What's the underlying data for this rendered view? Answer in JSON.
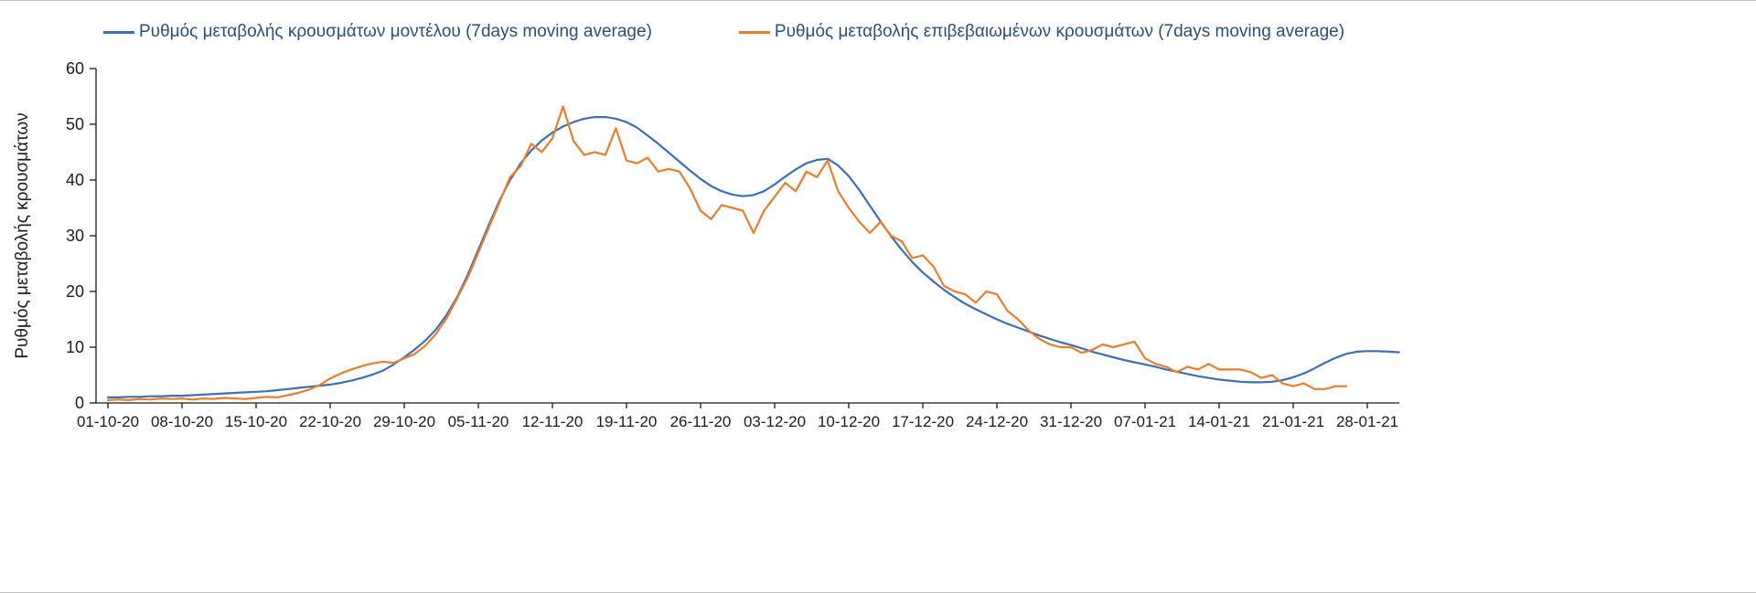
{
  "colors": {
    "legend_text": "#2d4f78",
    "axis": "#1a1a1a",
    "series_model": "#3e6fb4",
    "series_confirmed": "#ea7e2f"
  },
  "chart_data": {
    "type": "line",
    "title": "",
    "xlabel": "",
    "ylabel": "Ρυθμός μεταβολής κρουσμάτων",
    "ylim": [
      0,
      60
    ],
    "y_ticks": [
      0,
      10,
      20,
      30,
      40,
      50,
      60
    ],
    "grid": false,
    "legend_position": "top",
    "x_start": "01-10-20",
    "x_step_days": 1,
    "x_tick_positions": [
      0,
      7,
      14,
      21,
      28,
      35,
      42,
      49,
      56,
      63,
      70,
      77,
      84,
      91,
      98,
      105,
      112,
      119
    ],
    "x_tick_labels": [
      "01-10-20",
      "08-10-20",
      "15-10-20",
      "22-10-20",
      "29-10-20",
      "05-11-20",
      "12-11-20",
      "19-11-20",
      "26-11-20",
      "03-12-20",
      "10-12-20",
      "17-12-20",
      "24-12-20",
      "31-12-20",
      "07-01-21",
      "14-01-21",
      "21-01-21",
      "28-01-21"
    ],
    "series": [
      {
        "name": "Ρυθμός μεταβολής κρουσμάτων μοντέλου (7days moving average)",
        "color": "#3e6fb4",
        "values": [
          1.0,
          1.0,
          1.1,
          1.1,
          1.2,
          1.2,
          1.3,
          1.3,
          1.4,
          1.5,
          1.6,
          1.7,
          1.8,
          1.9,
          2.0,
          2.1,
          2.3,
          2.5,
          2.7,
          2.9,
          3.1,
          3.3,
          3.6,
          4.0,
          4.5,
          5.1,
          5.8,
          6.9,
          8.2,
          9.6,
          11.2,
          13.2,
          15.8,
          19.0,
          23.0,
          27.5,
          32.0,
          36.3,
          40.0,
          43.0,
          45.3,
          47.1,
          48.5,
          49.6,
          50.4,
          51.0,
          51.3,
          51.3,
          51.0,
          50.4,
          49.4,
          48.0,
          46.5,
          44.9,
          43.3,
          41.7,
          40.2,
          38.9,
          38.0,
          37.4,
          37.1,
          37.3,
          38.0,
          39.2,
          40.6,
          41.9,
          43.0,
          43.6,
          43.8,
          42.6,
          40.7,
          38.2,
          35.4,
          32.6,
          29.9,
          27.5,
          25.3,
          23.4,
          21.8,
          20.3,
          19.0,
          17.8,
          16.8,
          15.9,
          15.0,
          14.2,
          13.5,
          12.8,
          12.1,
          11.5,
          10.9,
          10.4,
          9.8,
          9.2,
          8.7,
          8.2,
          7.7,
          7.3,
          6.9,
          6.5,
          6.0,
          5.6,
          5.2,
          4.8,
          4.5,
          4.2,
          4.0,
          3.8,
          3.7,
          3.7,
          3.8,
          4.1,
          4.6,
          5.3,
          6.2,
          7.2,
          8.1,
          8.8,
          9.2,
          9.3,
          9.3,
          9.2,
          9.1
        ]
      },
      {
        "name": "Ρυθμός μεταβολής επιβεβαιωμένων κρουσμάτων (7days moving average)",
        "color": "#ea7e2f",
        "values": [
          0.5,
          0.6,
          0.5,
          0.7,
          0.6,
          0.8,
          0.7,
          0.8,
          0.6,
          0.8,
          0.7,
          0.9,
          0.8,
          0.7,
          0.9,
          1.1,
          1.0,
          1.4,
          1.8,
          2.4,
          3.2,
          4.4,
          5.3,
          6.0,
          6.6,
          7.1,
          7.4,
          7.2,
          8.0,
          8.8,
          10.3,
          12.4,
          15.2,
          18.8,
          22.5,
          27.0,
          31.5,
          36.0,
          40.5,
          42.5,
          46.5,
          45.0,
          47.5,
          53.2,
          47.0,
          44.5,
          45.0,
          44.5,
          49.3,
          43.5,
          43.0,
          44.0,
          41.5,
          42.0,
          41.5,
          38.5,
          34.5,
          33.0,
          35.5,
          35.0,
          34.5,
          30.5,
          34.5,
          37.0,
          39.5,
          38.0,
          41.5,
          40.5,
          43.5,
          38.0,
          35.0,
          32.5,
          30.5,
          32.5,
          30.0,
          29.0,
          26.0,
          26.5,
          24.5,
          21.0,
          20.0,
          19.5,
          18.0,
          20.0,
          19.5,
          16.5,
          15.0,
          13.0,
          11.5,
          10.5,
          10.0,
          10.0,
          9.0,
          9.5,
          10.5,
          10.0,
          10.5,
          11.0,
          8.0,
          7.0,
          6.5,
          5.5,
          6.5,
          6.0,
          7.0,
          6.0,
          6.0,
          6.0,
          5.5,
          4.5,
          5.0,
          3.5,
          3.0,
          3.5,
          2.5,
          2.5,
          3.0,
          3.0,
          null,
          null,
          null,
          null,
          null
        ]
      }
    ]
  }
}
